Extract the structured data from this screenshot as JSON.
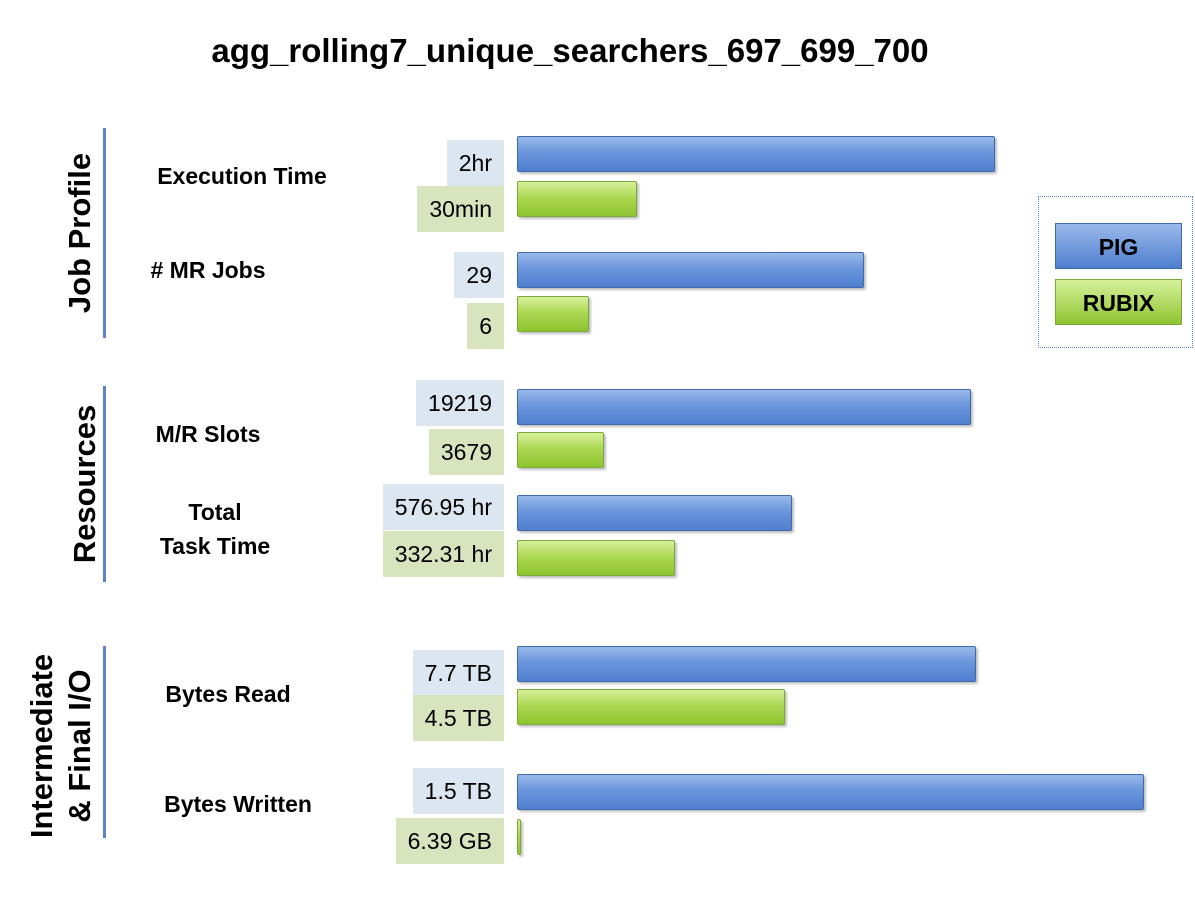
{
  "chart_data": {
    "type": "bar",
    "orientation": "horizontal",
    "title": "agg_rolling7_unique_searchers_697_699_700",
    "legend": {
      "placement": "right",
      "entries": [
        {
          "name": "PIG",
          "color": "#5b86d6"
        },
        {
          "name": "RUBIX",
          "color": "#9fd146"
        }
      ]
    },
    "sections": [
      {
        "label": "Job Profile",
        "metrics": [
          {
            "label_lines": [
              "Execution Time"
            ],
            "pig": {
              "label": "2hr",
              "value": 120
            },
            "rubix": {
              "label": "30min",
              "value": 30
            }
          },
          {
            "label_lines": [
              "# MR Jobs"
            ],
            "pig": {
              "label": "29",
              "value": 29
            },
            "rubix": {
              "label": "6",
              "value": 6
            }
          }
        ]
      },
      {
        "label": "Resources",
        "metrics": [
          {
            "label_lines": [
              "M/R Slots"
            ],
            "pig": {
              "label": "19219",
              "value": 19219
            },
            "rubix": {
              "label": "3679",
              "value": 3679
            }
          },
          {
            "label_lines": [
              "Total",
              "Task Time"
            ],
            "pig": {
              "label": "576.95 hr",
              "value": 576.95
            },
            "rubix": {
              "label": "332.31 hr",
              "value": 332.31
            }
          }
        ]
      },
      {
        "label_lines": [
          "Intermediate",
          "& Final  I/O"
        ],
        "metrics": [
          {
            "label_lines": [
              "Bytes Read"
            ],
            "pig": {
              "label": "7.7 TB",
              "value": 7.7
            },
            "rubix": {
              "label": "4.5 TB",
              "value": 4.5
            }
          },
          {
            "label_lines": [
              "Bytes Written"
            ],
            "pig": {
              "label": "1.5 TB",
              "value": 1.5
            },
            "rubix": {
              "label": "6.39 GB",
              "value": 0.00639
            }
          }
        ]
      }
    ]
  }
}
